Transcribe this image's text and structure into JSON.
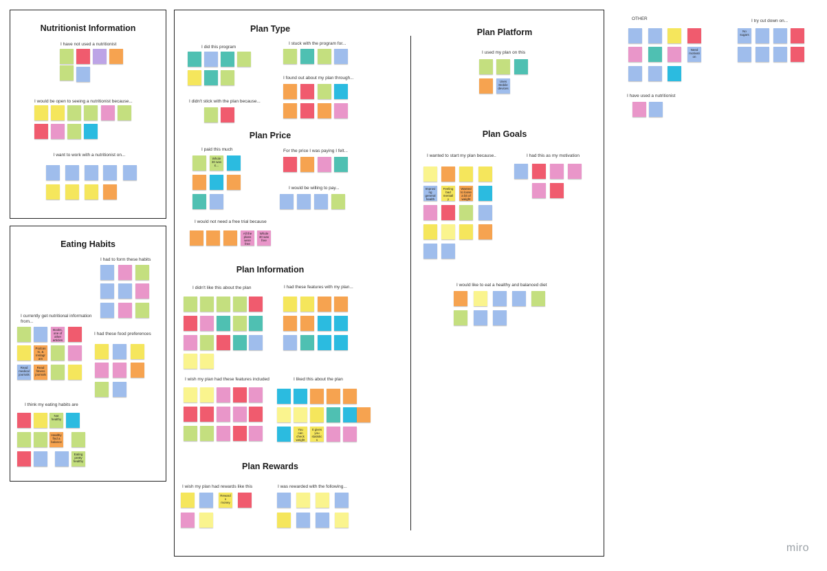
{
  "colors": {
    "yellow": "#f5e65c",
    "light-yellow": "#faf48e",
    "orange": "#f6a350",
    "red": "#f05b6e",
    "pink": "#e996c9",
    "green": "#c4df7f",
    "dark-green": "#98cf6a",
    "blue": "#9fbdec",
    "cyan": "#2bbbe0",
    "teal": "#4fc0b2",
    "violet": "#bda4e6"
  },
  "frames": {
    "nutritionist": {
      "title": "Nutritionist Information"
    },
    "eating": {
      "title": "Eating Habits"
    },
    "plan": {
      "titles": {
        "type": "Plan Type",
        "price": "Plan Price",
        "info": "Plan Information",
        "rewards": "Plan Rewards",
        "platform": "Plan Platform",
        "goals": "Plan Goals"
      }
    }
  },
  "labels": {
    "not_used": "I have not used a nutritionist",
    "open_to": "I would be open to seeing a nutritionist because...",
    "work_on": "I want to work with a nutritionist on...",
    "had_to_form": "I had to form these habits",
    "currently_get": "I currently get nutritional information from...",
    "food_prefs": "I had these food preferences",
    "eating_habits_are": "I think my eating habits are",
    "did_program": "I did this program",
    "stuck_with": "I stuck with the program for...",
    "found_out": "I found out about my plan through...",
    "didnt_stick": "I didn't stick with the plan because...",
    "paid_much": "I paid this much",
    "price_felt": "For the price I was paying I felt...",
    "willing_pay": "I would be willing to pay...",
    "free_trial": "I would not need a free trial because",
    "didnt_like": "I didn't like this about the plan",
    "had_features": "I had these features with my plan...",
    "wish_features": "I wish my plan had these features included",
    "liked": "I liked this about the plan",
    "wish_rewards": "I wish my plan had rewards like this",
    "was_rewarded": "I was rewarded with the following...",
    "used_plan_on": "I used my plan on this",
    "wanted_start": "I wanted to start my plan because..",
    "motivation": "I had this as my motivation",
    "healthy_diet": "I would like to eat a healthy and balanced diet",
    "other": "OTHER",
    "cut_down": "I try cut down on...",
    "have_used": "I have used a nutritionist"
  },
  "notes": {
    "readable": {
      "read_books": "Books, one of other articles",
      "podcasts": "Podcasts, & Instagram",
      "read_journals": "Read medical journals",
      "fitness_journals": "Read fitness journals",
      "healthy_balance": "Healthy find a balance",
      "eating_healthy": "Eating pretty healthy",
      "not_healthy": "Not healthy",
      "feel_bad": "Feeling bad mentally",
      "improve_health": "Improving general health",
      "wanted_lose": "Wanted to loose a bit of weight",
      "whole_30": "Whole 30 was £...",
      "all_the_plans": "All the plans were free",
      "whole_30_free": "Whole 30 was free",
      "rewards_money": "Rewards money",
      "check_weight": "You can check weight",
      "gives_stats": "It gives you statistics",
      "no_sugars": "No sugars",
      "need_motivation": "Need motivation",
      "mobile": "Uses Mobile devices",
      "no_fat": "No fat"
    }
  },
  "watermark": "miro"
}
